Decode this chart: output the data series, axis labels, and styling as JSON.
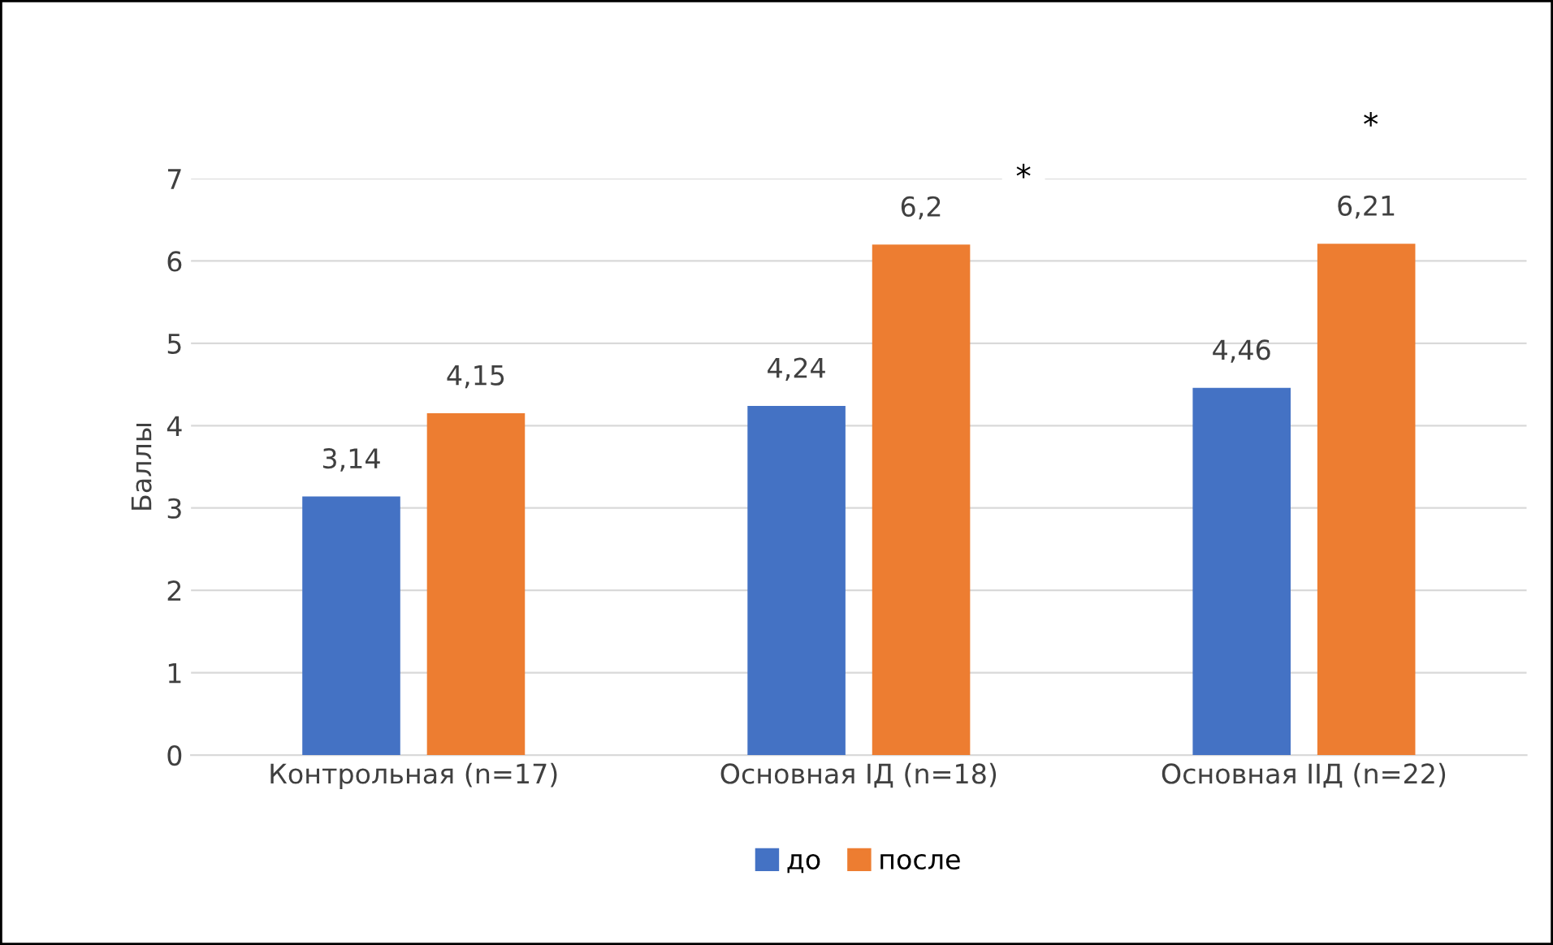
{
  "chart_data": {
    "type": "bar",
    "ylabel": "Баллы",
    "categories": [
      "Контрольная (n=17)",
      "Основная IД (n=18)",
      "Основная IIД (n=22)"
    ],
    "series": [
      {
        "name": "до",
        "color": "#4472c4",
        "values": [
          3.14,
          4.24,
          4.46
        ]
      },
      {
        "name": "после",
        "color": "#ed7d31",
        "values": [
          4.15,
          6.2,
          6.21
        ]
      }
    ],
    "value_labels": [
      [
        "3,14",
        "4,24",
        "4,46"
      ],
      [
        "4,15",
        "6,2",
        "6,21"
      ]
    ],
    "ylim": [
      0,
      7
    ],
    "yticks": [
      0,
      1,
      2,
      3,
      4,
      5,
      6,
      7
    ],
    "grid": "y",
    "legend": "bottom",
    "annotations": [
      "*",
      "*"
    ]
  }
}
